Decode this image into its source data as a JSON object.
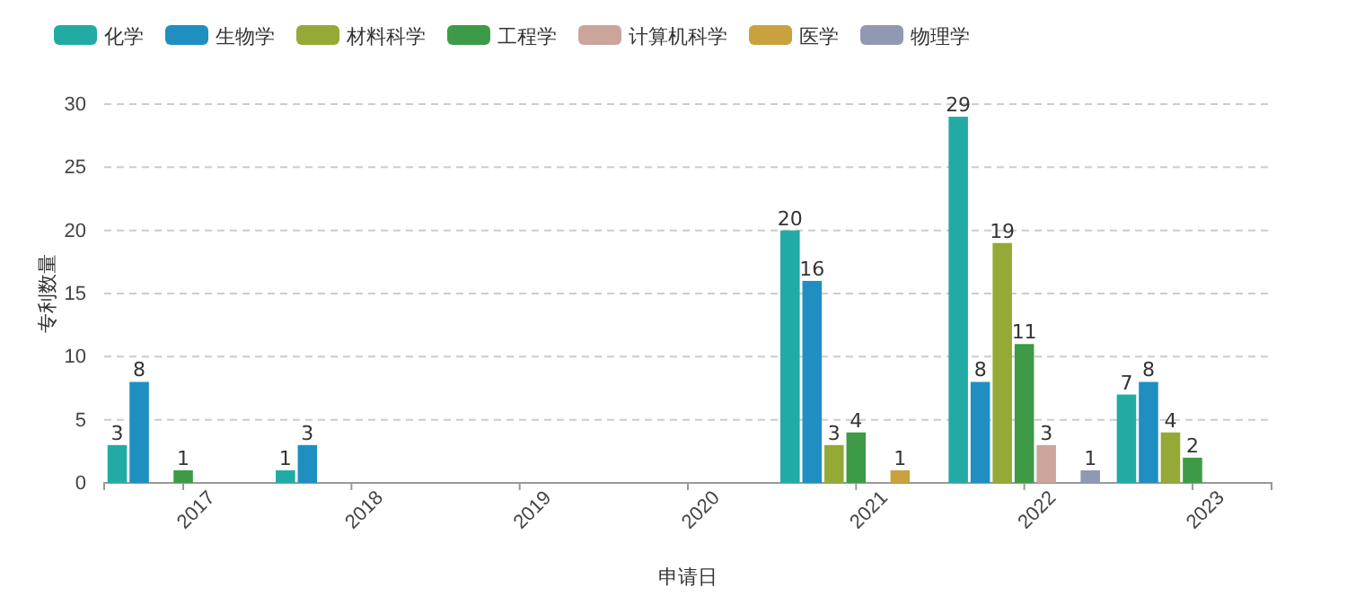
{
  "chart_data": {
    "type": "bar",
    "xlabel": "申请日",
    "ylabel": "专利数量",
    "categories": [
      "2017",
      "2018",
      "2019",
      "2020",
      "2021",
      "2022",
      "2023"
    ],
    "series": [
      {
        "name": "化学",
        "color": "#22aba4",
        "values": [
          3,
          1,
          null,
          null,
          20,
          29,
          7
        ]
      },
      {
        "name": "生物学",
        "color": "#1f8fc1",
        "values": [
          8,
          3,
          null,
          null,
          16,
          8,
          8
        ]
      },
      {
        "name": "材料科学",
        "color": "#95aa36",
        "values": [
          null,
          null,
          null,
          null,
          3,
          19,
          4
        ]
      },
      {
        "name": "工程学",
        "color": "#3d9b48",
        "values": [
          1,
          null,
          null,
          null,
          4,
          11,
          2
        ]
      },
      {
        "name": "计算机科学",
        "color": "#cba59b",
        "values": [
          null,
          null,
          null,
          null,
          null,
          3,
          null
        ]
      },
      {
        "name": "医学",
        "color": "#c9a23f",
        "values": [
          null,
          null,
          null,
          null,
          1,
          null,
          null
        ]
      },
      {
        "name": "物理学",
        "color": "#9199b2",
        "values": [
          null,
          null,
          null,
          null,
          null,
          1,
          null
        ]
      }
    ],
    "ylim": [
      0,
      30
    ],
    "yticks": [
      0,
      5,
      10,
      15,
      20,
      25,
      30
    ],
    "grid": "y",
    "legend": "top left",
    "data_labels": true
  }
}
